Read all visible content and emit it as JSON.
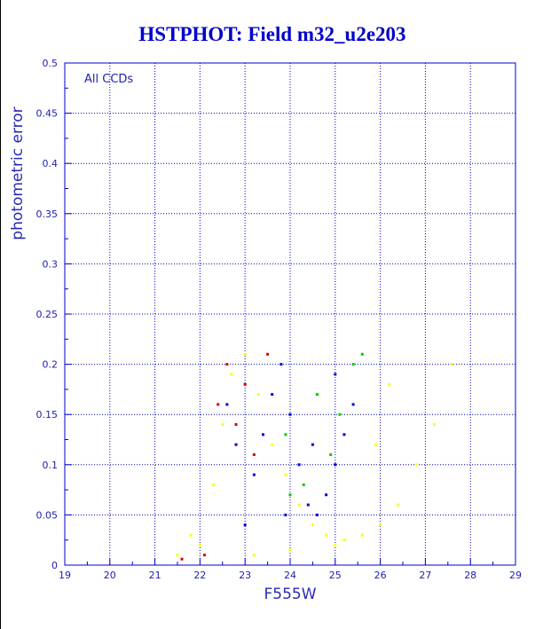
{
  "chart_data": {
    "type": "scatter",
    "title": "HSTPHOT: Field m32_u2e203",
    "xlabel": "F555W",
    "ylabel": "photometric error",
    "annotation": "All CCDs",
    "xlim": [
      19,
      29
    ],
    "ylim": [
      0,
      0.5
    ],
    "xticks": [
      "19",
      "20",
      "21",
      "22",
      "23",
      "24",
      "25",
      "26",
      "27",
      "28",
      "29"
    ],
    "yticks": [
      "0",
      "0.05",
      "0.1",
      "0.15",
      "0.2",
      "0.25",
      "0.3",
      "0.35",
      "0.4",
      "0.45",
      "0.5"
    ],
    "grid": true,
    "colors": {
      "axis": "#0000cc",
      "yellow": "#ffff00",
      "blue": "#0000dd",
      "green": "#00cc00",
      "red": "#dd0000"
    },
    "series": [
      {
        "color": "yellow",
        "points": [
          [
            22.0,
            0.02
          ],
          [
            22.3,
            0.08
          ],
          [
            22.5,
            0.14
          ],
          [
            22.7,
            0.19
          ],
          [
            23.0,
            0.21
          ],
          [
            23.3,
            0.17
          ],
          [
            23.6,
            0.12
          ],
          [
            23.9,
            0.09
          ],
          [
            24.2,
            0.06
          ],
          [
            24.5,
            0.04
          ],
          [
            24.8,
            0.03
          ],
          [
            25.2,
            0.025
          ],
          [
            25.6,
            0.03
          ],
          [
            26.0,
            0.04
          ],
          [
            26.4,
            0.06
          ],
          [
            26.8,
            0.1
          ],
          [
            27.2,
            0.14
          ],
          [
            27.6,
            0.2
          ],
          [
            21.8,
            0.03
          ],
          [
            21.5,
            0.01
          ],
          [
            23.2,
            0.01
          ],
          [
            24.0,
            0.015
          ],
          [
            25.0,
            0.02
          ],
          [
            26.2,
            0.18
          ],
          [
            25.9,
            0.12
          ]
        ]
      },
      {
        "color": "blue",
        "points": [
          [
            23.0,
            0.04
          ],
          [
            23.2,
            0.09
          ],
          [
            23.4,
            0.13
          ],
          [
            23.6,
            0.17
          ],
          [
            23.8,
            0.2
          ],
          [
            24.0,
            0.15
          ],
          [
            24.2,
            0.1
          ],
          [
            24.4,
            0.06
          ],
          [
            24.6,
            0.05
          ],
          [
            24.8,
            0.07
          ],
          [
            25.0,
            0.1
          ],
          [
            25.2,
            0.13
          ],
          [
            25.4,
            0.16
          ],
          [
            25.0,
            0.19
          ],
          [
            24.5,
            0.12
          ],
          [
            23.9,
            0.05
          ],
          [
            22.8,
            0.12
          ],
          [
            22.6,
            0.16
          ]
        ]
      },
      {
        "color": "green",
        "points": [
          [
            24.3,
            0.08
          ],
          [
            24.9,
            0.11
          ],
          [
            25.4,
            0.2
          ],
          [
            25.1,
            0.15
          ],
          [
            24.6,
            0.17
          ],
          [
            23.9,
            0.13
          ],
          [
            25.6,
            0.21
          ],
          [
            24.0,
            0.07
          ]
        ]
      },
      {
        "color": "red",
        "points": [
          [
            22.6,
            0.2
          ],
          [
            23.0,
            0.18
          ],
          [
            22.8,
            0.14
          ],
          [
            23.2,
            0.11
          ],
          [
            22.4,
            0.16
          ],
          [
            23.5,
            0.21
          ],
          [
            21.6,
            0.006
          ],
          [
            22.1,
            0.01
          ]
        ]
      }
    ]
  }
}
